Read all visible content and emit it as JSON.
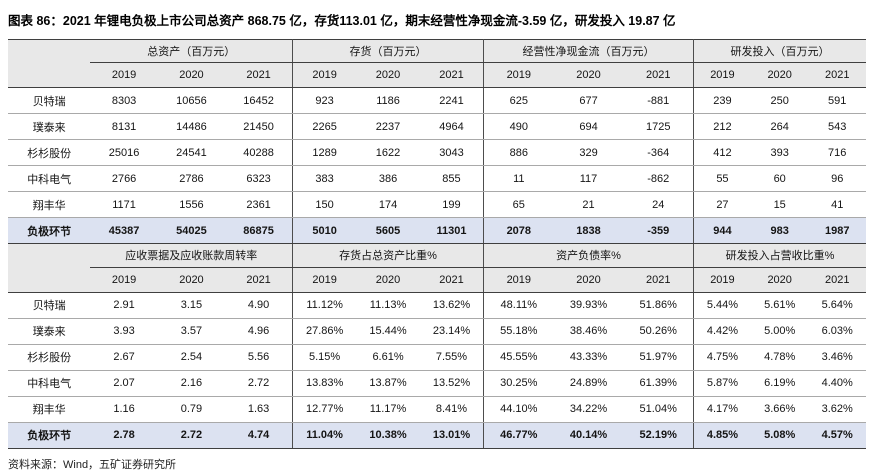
{
  "title": "图表 86：2021 年锂电负极上市公司总资产 868.75 亿，存货113.01 亿，期末经营性净现金流-3.59 亿，研发投入 19.87 亿",
  "source": "资料来源：Wind，五矿证券研究所",
  "years": [
    "2019",
    "2020",
    "2021"
  ],
  "colors": {
    "header_bg": "#e8e8e8",
    "highlight_row_bg": "#dce2f1",
    "dark_border": "#3f3f3f",
    "light_border": "#a9a9a9"
  },
  "tables": [
    {
      "groups": [
        "总资产（百万元）",
        "存货（百万元）",
        "经营性净现金流（百万元）",
        "研发投入（百万元）"
      ],
      "rows": [
        {
          "name": "贝特瑞",
          "highlight": false,
          "values": [
            "8303",
            "10656",
            "16452",
            "923",
            "1186",
            "2241",
            "625",
            "677",
            "-881",
            "239",
            "250",
            "591"
          ]
        },
        {
          "name": "璞泰来",
          "highlight": false,
          "values": [
            "8131",
            "14486",
            "21450",
            "2265",
            "2237",
            "4964",
            "490",
            "694",
            "1725",
            "212",
            "264",
            "543"
          ]
        },
        {
          "name": "杉杉股份",
          "highlight": false,
          "values": [
            "25016",
            "24541",
            "40288",
            "1289",
            "1622",
            "3043",
            "886",
            "329",
            "-364",
            "412",
            "393",
            "716"
          ]
        },
        {
          "name": "中科电气",
          "highlight": false,
          "values": [
            "2766",
            "2786",
            "6323",
            "383",
            "386",
            "855",
            "11",
            "117",
            "-862",
            "55",
            "60",
            "96"
          ]
        },
        {
          "name": "翔丰华",
          "highlight": false,
          "values": [
            "1171",
            "1556",
            "2361",
            "150",
            "174",
            "199",
            "65",
            "21",
            "24",
            "27",
            "15",
            "41"
          ]
        },
        {
          "name": "负极环节",
          "highlight": true,
          "values": [
            "45387",
            "54025",
            "86875",
            "5010",
            "5605",
            "11301",
            "2078",
            "1838",
            "-359",
            "944",
            "983",
            "1987"
          ]
        }
      ]
    },
    {
      "groups": [
        "应收票据及应收账款周转率",
        "存货占总资产比重%",
        "资产负债率%",
        "研发投入占营收比重%"
      ],
      "rows": [
        {
          "name": "贝特瑞",
          "highlight": false,
          "values": [
            "2.91",
            "3.15",
            "4.90",
            "11.12%",
            "11.13%",
            "13.62%",
            "48.11%",
            "39.93%",
            "51.86%",
            "5.44%",
            "5.61%",
            "5.64%"
          ]
        },
        {
          "name": "璞泰来",
          "highlight": false,
          "values": [
            "3.93",
            "3.57",
            "4.96",
            "27.86%",
            "15.44%",
            "23.14%",
            "55.18%",
            "38.46%",
            "50.26%",
            "4.42%",
            "5.00%",
            "6.03%"
          ]
        },
        {
          "name": "杉杉股份",
          "highlight": false,
          "values": [
            "2.67",
            "2.54",
            "5.56",
            "5.15%",
            "6.61%",
            "7.55%",
            "45.55%",
            "43.33%",
            "51.97%",
            "4.75%",
            "4.78%",
            "3.46%"
          ]
        },
        {
          "name": "中科电气",
          "highlight": false,
          "values": [
            "2.07",
            "2.16",
            "2.72",
            "13.83%",
            "13.87%",
            "13.52%",
            "30.25%",
            "24.89%",
            "61.39%",
            "5.87%",
            "6.19%",
            "4.40%"
          ]
        },
        {
          "name": "翔丰华",
          "highlight": false,
          "values": [
            "1.16",
            "0.79",
            "1.63",
            "12.77%",
            "11.17%",
            "8.41%",
            "44.10%",
            "34.22%",
            "51.04%",
            "4.17%",
            "3.66%",
            "3.62%"
          ]
        },
        {
          "name": "负极环节",
          "highlight": true,
          "values": [
            "2.78",
            "2.72",
            "4.74",
            "11.04%",
            "10.38%",
            "13.01%",
            "46.77%",
            "40.14%",
            "52.19%",
            "4.85%",
            "5.08%",
            "4.57%"
          ]
        }
      ]
    }
  ]
}
